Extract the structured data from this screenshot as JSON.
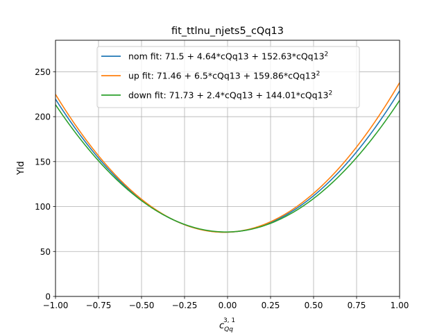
{
  "chart_data": {
    "type": "line",
    "title": "fit_ttlnu_njets5_cQq13",
    "ylabel": "Yld",
    "xlabel": {
      "base": "c",
      "sub": "Qq",
      "sup": "3, 1"
    },
    "xlim": [
      -1.0,
      1.0
    ],
    "ylim": [
      0,
      285
    ],
    "xticks": [
      -1.0,
      -0.75,
      -0.5,
      -0.25,
      0.0,
      0.25,
      0.5,
      0.75,
      1.0
    ],
    "xtick_labels": [
      "−1.00",
      "−0.75",
      "−0.50",
      "−0.25",
      "0.00",
      "0.25",
      "0.50",
      "0.75",
      "1.00"
    ],
    "yticks": [
      0,
      50,
      100,
      150,
      200,
      250
    ],
    "ytick_labels": [
      "0",
      "50",
      "100",
      "150",
      "200",
      "250"
    ],
    "grid": true,
    "legend_position": "top-center",
    "series": [
      {
        "label": "nom fit: 71.5 + 4.64*cQq13 + 152.63*cQq13",
        "sup": "2",
        "color": "#1f77b4",
        "coeffs": [
          71.5,
          4.64,
          152.63
        ]
      },
      {
        "label": "up fit: 71.46 + 6.5*cQq13 + 159.86*cQq13",
        "sup": "2",
        "color": "#ff7f0e",
        "coeffs": [
          71.46,
          6.5,
          159.86
        ]
      },
      {
        "label": "down fit: 71.73 + 2.4*cQq13 + 144.01*cQq13",
        "sup": "2",
        "color": "#2ca02c",
        "coeffs": [
          71.73,
          2.4,
          144.01
        ]
      }
    ]
  }
}
